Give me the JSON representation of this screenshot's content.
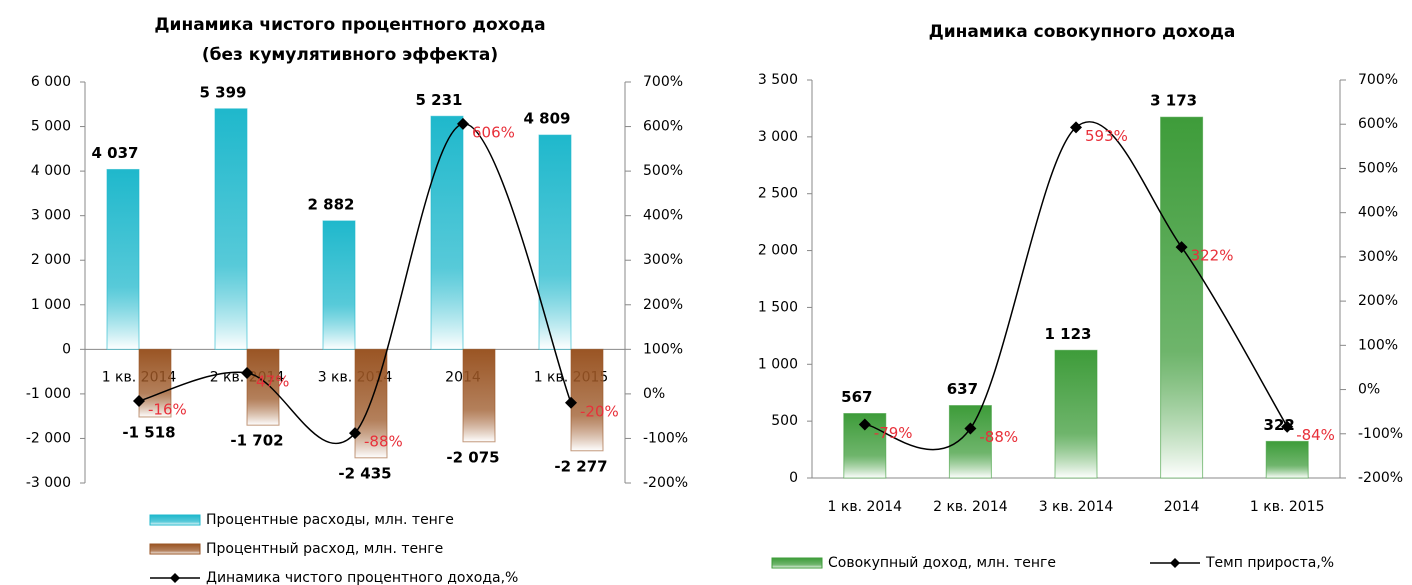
{
  "chart_data": [
    {
      "type": "bar",
      "title": [
        "Динамика чистого процентного дохода",
        "(без кумулятивного эффекта)"
      ],
      "categories": [
        "1 кв. 2014",
        "2 кв. 2014",
        "3 кв. 2014",
        "2014",
        "1 кв. 2015"
      ],
      "series": [
        {
          "name": "Процентные расходы, млн. тенге",
          "color": "#1fb8cc",
          "values": [
            4037,
            5399,
            2882,
            5231,
            4809
          ],
          "value_labels": [
            "4 037",
            "5 399",
            "2 882",
            "5 231",
            "4 809"
          ]
        },
        {
          "name": "Процентный расход, млн. тенге",
          "color": "#9a5524",
          "values": [
            -1518,
            -1702,
            -2435,
            -2075,
            -2277
          ],
          "value_labels": [
            "-1 518",
            "-1 702",
            "-2 435",
            "-2 075",
            "-2 277"
          ]
        },
        {
          "name": "Динамика чистого процентного дохода,%",
          "color": "#000000",
          "axis": "y2",
          "type": "line",
          "values": [
            -16,
            47,
            -88,
            606,
            -20
          ],
          "value_labels": [
            "-16%",
            "47%",
            "-88%",
            "606%",
            "-20%"
          ]
        }
      ],
      "ylim": [
        -3000,
        6000
      ],
      "yticks": [
        {
          "value": -3000,
          "label": "-3 000"
        },
        {
          "value": -2000,
          "label": "-2 000"
        },
        {
          "value": -1000,
          "label": "-1 000"
        },
        0,
        {
          "value": 1000,
          "label": "1 000"
        },
        {
          "value": 2000,
          "label": "2 000"
        },
        {
          "value": 3000,
          "label": "3 000"
        },
        {
          "value": 4000,
          "label": "4 000"
        },
        {
          "value": 5000,
          "label": "5 000"
        },
        {
          "value": 6000,
          "label": "6 000"
        }
      ],
      "y2lim": [
        -200,
        700
      ],
      "y2ticks": [
        {
          "value": -200,
          "label": "-200%"
        },
        {
          "value": -100,
          "label": "-100%"
        },
        {
          "value": 0,
          "label": "0%"
        },
        {
          "value": 100,
          "label": "100%"
        },
        {
          "value": 200,
          "label": "200%"
        },
        {
          "value": 300,
          "label": "300%"
        },
        {
          "value": 400,
          "label": "400%"
        },
        {
          "value": 500,
          "label": "500%"
        },
        {
          "value": 600,
          "label": "600%"
        },
        {
          "value": 700,
          "label": "700%"
        }
      ],
      "legend": "bottom"
    },
    {
      "type": "bar",
      "title": [
        "Динамика совокупного дохода"
      ],
      "categories": [
        "1 кв. 2014",
        "2 кв. 2014",
        "3 кв. 2014",
        "2014",
        "1 кв. 2015"
      ],
      "series": [
        {
          "name": "Совокупный доход, млн. тенге",
          "color": "#3e9c3a",
          "values": [
            567,
            637,
            1123,
            3173,
            322
          ],
          "value_labels": [
            "567",
            "637",
            "1 123",
            "3 173",
            "322"
          ]
        },
        {
          "name": "Темп прироста,%",
          "color": "#000000",
          "axis": "y2",
          "type": "line",
          "values": [
            -79,
            -88,
            593,
            322,
            -84
          ],
          "value_labels": [
            "-79%",
            "-88%",
            "593%",
            "322%",
            "-84%"
          ]
        }
      ],
      "ylim": [
        0,
        3500
      ],
      "yticks": [
        0,
        500,
        {
          "value": 1000,
          "label": "1 000"
        },
        {
          "value": 1500,
          "label": "1 500"
        },
        {
          "value": 2000,
          "label": "2 000"
        },
        {
          "value": 2500,
          "label": "2 500"
        },
        {
          "value": 3000,
          "label": "3 000"
        },
        {
          "value": 3500,
          "label": "3 500"
        }
      ],
      "y2lim": [
        -200,
        700
      ],
      "y2ticks": [
        {
          "value": -200,
          "label": "-200%"
        },
        {
          "value": -100,
          "label": "-100%"
        },
        {
          "value": 0,
          "label": "0%"
        },
        {
          "value": 100,
          "label": "100%"
        },
        {
          "value": 200,
          "label": "200%"
        },
        {
          "value": 300,
          "label": "300%"
        },
        {
          "value": 400,
          "label": "400%"
        },
        {
          "value": 500,
          "label": "500%"
        },
        {
          "value": 600,
          "label": "600%"
        },
        {
          "value": 700,
          "label": "700%"
        }
      ],
      "legend": "bottom"
    }
  ]
}
